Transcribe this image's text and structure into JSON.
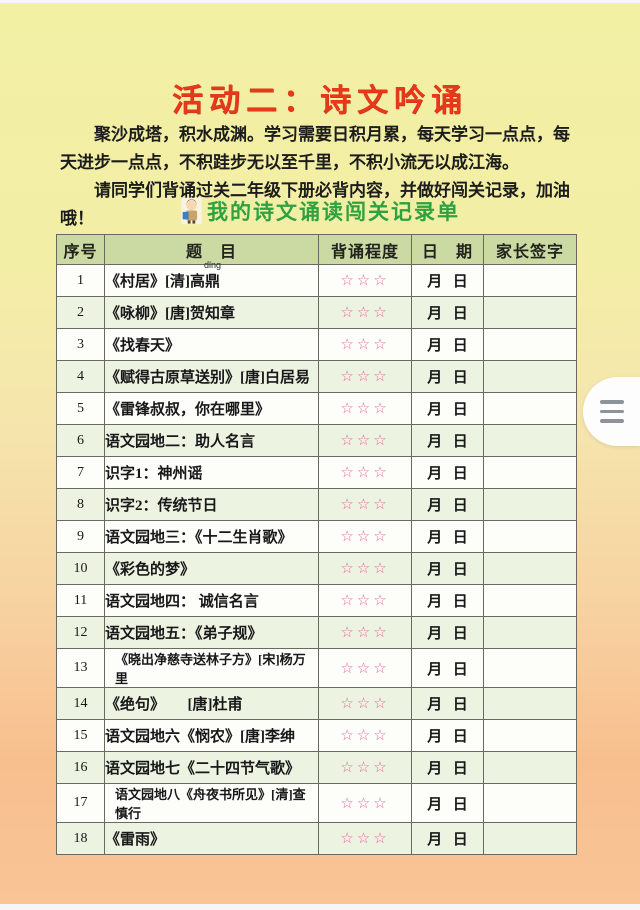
{
  "page": {
    "title": "活动二：诗文吟诵",
    "intro_paragraph": "聚沙成塔，积水成渊。学习需要日积月累，每天学习一点点，每天进步一点点，不积跬步无以至千里，不积小流无以成江海。",
    "instruction_paragraph": "请同学们背诵过关二年级下册必背内容，并做好闯关记录，加油哦！",
    "subtitle": "我的诗文诵读闯关记录单",
    "colors": {
      "title_red": "#e6391c",
      "subtitle_green": "#2fa23f",
      "header_bg": "#cbd9a3",
      "row_alt_bg": "#edf3e1",
      "star_pink": "#e36a9e",
      "bg_gradient_top": "#f2f0a3",
      "bg_gradient_bottom": "#f8bf8e"
    }
  },
  "table": {
    "headers": [
      "序号",
      "题　目",
      "背诵程度",
      "日　期",
      "家长签字"
    ],
    "stars_symbol": "☆☆☆",
    "month_label": "月",
    "day_label": "日",
    "rows": [
      {
        "no": "1",
        "title": "《村居》[清]高鼎",
        "pinyin": "dǐng"
      },
      {
        "no": "2",
        "title": "《咏柳》[唐]贺知章"
      },
      {
        "no": "3",
        "title": "《找春天》"
      },
      {
        "no": "4",
        "title": "《赋得古原草送别》[唐]白居易"
      },
      {
        "no": "5",
        "title": "《雷锋叔叔，你在哪里》"
      },
      {
        "no": "6",
        "title": "语文园地二：助人名言"
      },
      {
        "no": "7",
        "title": "识字1：神州谣"
      },
      {
        "no": "8",
        "title": "识字2：传统节日"
      },
      {
        "no": "9",
        "title": "语文园地三：《十二生肖歌》"
      },
      {
        "no": "10",
        "title": "《彩色的梦》"
      },
      {
        "no": "11",
        "title": "语文园地四： 诚信名言"
      },
      {
        "no": "12",
        "title": "语文园地五：《弟子规》"
      },
      {
        "no": "13",
        "title": "《晓出净慈寺送林子方》[宋]杨万里",
        "small": true
      },
      {
        "no": "14",
        "title": "《绝句》　　[唐]杜甫"
      },
      {
        "no": "15",
        "title": "语文园地六《悯农》[唐]李绅"
      },
      {
        "no": "16",
        "title": "语文园地七《二十四节气歌》"
      },
      {
        "no": "17",
        "title": "语文园地八《舟夜书所见》[清]查慎行",
        "small": true
      },
      {
        "no": "18",
        "title": "《雷雨》"
      }
    ]
  },
  "floating_menu": {
    "icon": "hamburger-menu"
  }
}
